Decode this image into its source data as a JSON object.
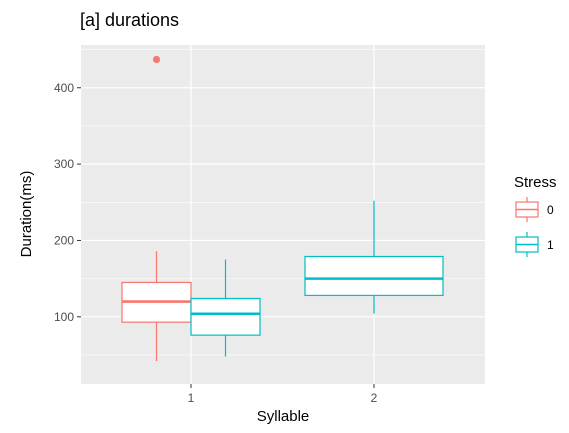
{
  "chart_data": {
    "type": "boxplot",
    "title": "[a] durations",
    "xlabel": "Syllable",
    "ylabel": "Duration(ms)",
    "categories": [
      "1",
      "2"
    ],
    "ylim": [
      12,
      456
    ],
    "y_ticks": [
      100,
      200,
      300,
      400
    ],
    "grid": true,
    "legend": {
      "title": "Stress",
      "placement": "right",
      "entries": [
        {
          "label": "0",
          "color": "#F8766D"
        },
        {
          "label": "1",
          "color": "#00BFC4"
        }
      ]
    },
    "series": [
      {
        "name": "0",
        "color": "#F8766D",
        "boxes": [
          {
            "category": "1",
            "min": 42,
            "q1": 93,
            "median": 120,
            "q3": 145,
            "max": 186,
            "outliers": [
              437
            ]
          }
        ]
      },
      {
        "name": "1",
        "color": "#00BFC4",
        "boxes": [
          {
            "category": "1",
            "min": 48,
            "q1": 76,
            "median": 104,
            "q3": 124,
            "max": 175,
            "outliers": []
          },
          {
            "category": "2",
            "min": 104,
            "q1": 128,
            "median": 150,
            "q3": 179,
            "max": 252,
            "outliers": []
          }
        ]
      }
    ]
  }
}
